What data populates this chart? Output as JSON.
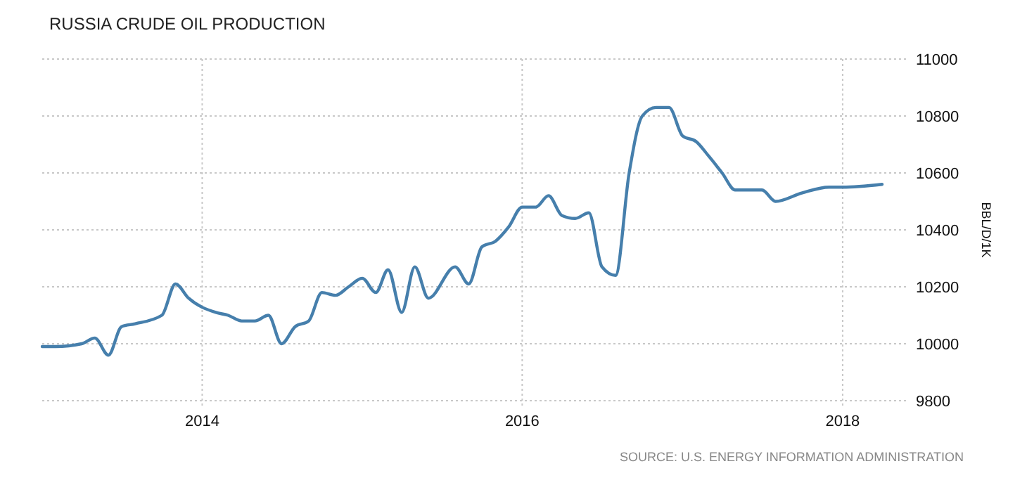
{
  "chart_data": {
    "type": "line",
    "title": "RUSSIA CRUDE OIL PRODUCTION",
    "ylabel": "BBL/D/1K",
    "annotations": [
      "SOURCE: U.S. ENERGY INFORMATION ADMINISTRATION"
    ],
    "x": [
      "2013-01",
      "2013-02",
      "2013-04",
      "2013-05",
      "2013-06",
      "2013-07",
      "2013-08",
      "2013-10",
      "2013-11",
      "2013-12",
      "2014-02",
      "2014-03",
      "2014-04",
      "2014-05",
      "2014-06",
      "2014-07",
      "2014-08",
      "2014-09",
      "2014-10",
      "2014-11",
      "2014-12",
      "2015-01",
      "2015-02",
      "2015-03",
      "2015-04",
      "2015-05",
      "2015-06",
      "2015-08",
      "2015-09",
      "2015-10",
      "2015-11",
      "2015-12",
      "2016-01",
      "2016-02",
      "2016-03",
      "2016-04",
      "2016-05",
      "2016-06",
      "2016-07",
      "2016-08",
      "2016-09",
      "2016-10",
      "2016-11",
      "2016-12",
      "2017-01",
      "2017-02",
      "2017-03",
      "2017-04",
      "2017-05",
      "2017-07",
      "2017-08",
      "2017-10",
      "2017-12",
      "2018-01",
      "2018-04"
    ],
    "series": [
      {
        "color": "#467fac",
        "values": [
          9990,
          9990,
          10000,
          10020,
          9960,
          10060,
          10070,
          10100,
          10210,
          10160,
          10110,
          10100,
          10080,
          10080,
          10100,
          10000,
          10060,
          10080,
          10180,
          10170,
          10200,
          10230,
          10180,
          10260,
          10110,
          10270,
          10160,
          10270,
          10210,
          10340,
          10360,
          10410,
          10480,
          10480,
          10520,
          10450,
          10440,
          10460,
          10270,
          10240,
          10600,
          10800,
          10830,
          10830,
          10730,
          10710,
          10660,
          10600,
          10540,
          10540,
          10500,
          10530,
          10550,
          10550,
          10560
        ]
      }
    ],
    "xlim": [
      "2013-01",
      "2018-06"
    ],
    "xticks": [
      "2014",
      "2016",
      "2018"
    ],
    "ylim": [
      9800,
      11000
    ],
    "yticks": [
      9800,
      10000,
      10200,
      10400,
      10600,
      10800,
      11000
    ],
    "grid": true,
    "line_style": "solid",
    "marker": "none"
  }
}
